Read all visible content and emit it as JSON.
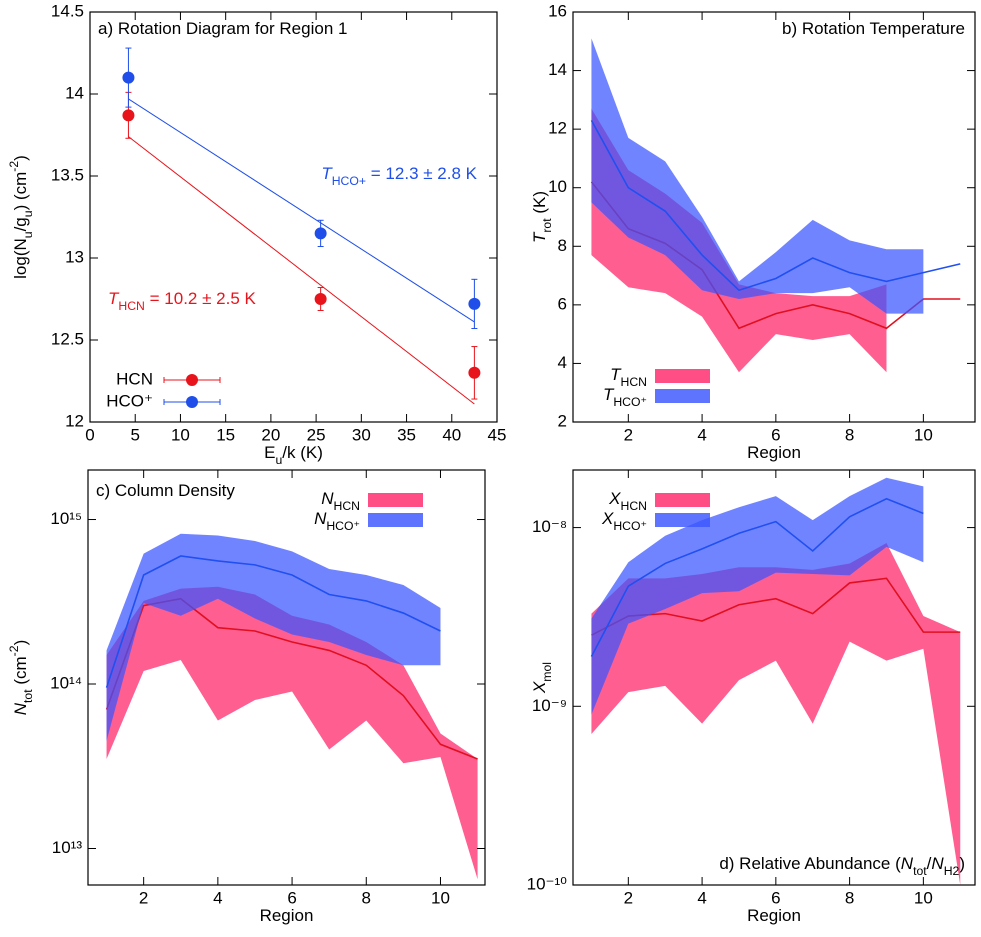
{
  "chart_data": [
    {
      "type": "scatter",
      "title": [
        {
          "text": "a) Rotation Diagram for Region 1"
        }
      ],
      "x_label": [
        {
          "text": "E"
        },
        {
          "text": "u",
          "shift": "sub"
        },
        {
          "text": "/k (K)"
        }
      ],
      "y_label": [
        {
          "text": "log(N"
        },
        {
          "text": "u",
          "shift": "sub"
        },
        {
          "text": "/g"
        },
        {
          "text": "u",
          "shift": "sub"
        },
        {
          "text": ") (cm"
        },
        {
          "text": "-2",
          "shift": "super"
        },
        {
          "text": ")"
        }
      ],
      "xlim": [
        0,
        45
      ],
      "xticks": [
        0,
        5,
        10,
        15,
        20,
        25,
        30,
        35,
        40,
        45
      ],
      "ylim": [
        12,
        14.5
      ],
      "yticks": [
        12,
        12.5,
        13,
        13.5,
        14,
        14.5
      ],
      "legend": "lower left",
      "series": [
        {
          "name": "HCN",
          "color": "#e8141b",
          "x": [
            4.25,
            25.5,
            42.5
          ],
          "values": [
            13.87,
            12.75,
            12.3
          ],
          "errors": [
            0.14,
            0.07,
            0.16
          ],
          "fit": {
            "x": [
              4.25,
              42.5
            ],
            "values": [
              13.74,
              12.11
            ]
          }
        },
        {
          "name": "HCO⁺",
          "color": "#1f4fe8",
          "x": [
            4.25,
            25.5,
            42.5
          ],
          "values": [
            14.1,
            13.15,
            12.72
          ],
          "errors": [
            0.18,
            0.08,
            0.15
          ],
          "fit": {
            "x": [
              4.25,
              42.5
            ],
            "values": [
              13.97,
              12.61
            ]
          }
        }
      ],
      "annotations": [
        {
          "text": [
            {
              "text": "T",
              "italic": true
            },
            {
              "text": "HCO+",
              "shift": "sub"
            },
            {
              "text": " = 12.3 ± 2.8 K"
            }
          ],
          "color": "#1f4fe8"
        },
        {
          "text": [
            {
              "text": "T",
              "italic": true
            },
            {
              "text": "HCN",
              "shift": "sub"
            },
            {
              "text": " = 10.2 ± 2.5 K"
            }
          ],
          "color": "#e8141b"
        }
      ]
    },
    {
      "type": "line",
      "title": [
        {
          "text": "b) Rotation Temperature"
        }
      ],
      "x_label": [
        {
          "text": "Region"
        }
      ],
      "y_label": [
        {
          "text": "T",
          "italic": true
        },
        {
          "text": "rot",
          "shift": "sub"
        },
        {
          "text": " (K)"
        }
      ],
      "xlim": [
        0.5,
        11.4
      ],
      "xticks": [
        2,
        4,
        6,
        8,
        10
      ],
      "ylim": [
        2,
        16
      ],
      "yticks": [
        2,
        4,
        6,
        8,
        10,
        12,
        14,
        16
      ],
      "legend": "lower left",
      "x": [
        1,
        2,
        3,
        4,
        5,
        6,
        7,
        8,
        9,
        10,
        11
      ],
      "series": [
        {
          "name": [
            {
              "text": "T",
              "italic": true
            },
            {
              "text": "HCN",
              "shift": "sub"
            }
          ],
          "color": "#e01020",
          "band_color": "#ff4d85",
          "band_opacity": 0.9,
          "values": [
            10.2,
            8.6,
            8.1,
            7.2,
            5.2,
            5.7,
            6.0,
            5.7,
            5.2,
            6.2,
            6.2
          ],
          "lower": [
            7.7,
            6.6,
            6.4,
            5.6,
            3.7,
            5.0,
            4.8,
            5.0,
            3.7,
            null,
            null
          ],
          "upper": [
            12.7,
            10.6,
            9.8,
            8.8,
            6.7,
            6.4,
            6.3,
            6.3,
            6.7,
            null,
            null
          ]
        },
        {
          "name": [
            {
              "text": "T",
              "italic": true
            },
            {
              "text": "HCO⁺",
              "shift": "sub"
            }
          ],
          "color": "#2050f0",
          "band_color": "#3a55ff",
          "band_opacity": 0.72,
          "values": [
            12.3,
            10.0,
            9.2,
            7.7,
            6.5,
            6.9,
            7.6,
            7.1,
            6.8,
            7.1,
            7.4
          ],
          "lower": [
            9.5,
            8.3,
            7.7,
            6.5,
            6.2,
            6.4,
            6.4,
            6.6,
            5.7,
            5.7,
            null
          ],
          "upper": [
            15.1,
            11.7,
            10.9,
            9.0,
            6.8,
            7.8,
            8.9,
            8.2,
            7.9,
            7.9,
            null
          ]
        }
      ]
    },
    {
      "type": "line",
      "title": [
        {
          "text": "c) Column Density"
        }
      ],
      "x_label": [
        {
          "text": "Region"
        }
      ],
      "y_label": [
        {
          "text": "N",
          "italic": true
        },
        {
          "text": "tot",
          "shift": "sub"
        },
        {
          "text": " (cm"
        },
        {
          "text": "-2",
          "shift": "super"
        },
        {
          "text": ")"
        }
      ],
      "xlim": [
        0.5,
        11.2
      ],
      "xticks": [
        2,
        4,
        6,
        8,
        10
      ],
      "yscale": "log",
      "ylim": [
        6000000000000.0,
        2000000000000000.0
      ],
      "yticks": [
        {
          "value": 10000000000000.0,
          "label": "10¹³"
        },
        {
          "value": 100000000000000.0,
          "label": "10¹⁴"
        },
        {
          "value": 1000000000000000.0,
          "label": "10¹⁵"
        }
      ],
      "legend": "upper right",
      "x": [
        1,
        2,
        3,
        4,
        5,
        6,
        7,
        8,
        9,
        10,
        11
      ],
      "series": [
        {
          "name": [
            {
              "text": "N",
              "italic": true
            },
            {
              "text": "HCN",
              "shift": "sub"
            }
          ],
          "color": "#e01020",
          "band_color": "#ff4d85",
          "band_opacity": 0.9,
          "values": [
            70000000000000.0,
            300000000000000.0,
            330000000000000.0,
            220000000000000.0,
            210000000000000.0,
            180000000000000.0,
            160000000000000.0,
            130000000000000.0,
            85000000000000.0,
            43000000000000.0,
            35000000000000.0
          ],
          "lower": [
            35000000000000.0,
            120000000000000.0,
            140000000000000.0,
            60000000000000.0,
            80000000000000.0,
            90000000000000.0,
            40000000000000.0,
            60000000000000.0,
            33000000000000.0,
            36000000000000.0,
            6500000000000.0
          ],
          "upper": [
            150000000000000.0,
            320000000000000.0,
            380000000000000.0,
            390000000000000.0,
            350000000000000.0,
            260000000000000.0,
            230000000000000.0,
            180000000000000.0,
            130000000000000.0,
            50000000000000.0,
            35000000000000.0
          ]
        },
        {
          "name": [
            {
              "text": "N",
              "italic": true
            },
            {
              "text": "HCO⁺",
              "shift": "sub"
            }
          ],
          "color": "#2050f0",
          "band_color": "#3a55ff",
          "band_opacity": 0.72,
          "values": [
            95000000000000.0,
            460000000000000.0,
            600000000000000.0,
            560000000000000.0,
            530000000000000.0,
            460000000000000.0,
            350000000000000.0,
            320000000000000.0,
            270000000000000.0,
            210000000000000.0,
            null
          ],
          "lower": [
            45000000000000.0,
            310000000000000.0,
            260000000000000.0,
            330000000000000.0,
            250000000000000.0,
            200000000000000.0,
            180000000000000.0,
            150000000000000.0,
            130000000000000.0,
            130000000000000.0,
            null
          ],
          "upper": [
            160000000000000.0,
            620000000000000.0,
            820000000000000.0,
            800000000000000.0,
            740000000000000.0,
            640000000000000.0,
            500000000000000.0,
            460000000000000.0,
            400000000000000.0,
            290000000000000.0,
            null
          ]
        }
      ]
    },
    {
      "type": "line",
      "title": [
        {
          "text": "d) Relative Abundance ("
        },
        {
          "text": "N",
          "italic": true
        },
        {
          "text": "tot",
          "shift": "sub"
        },
        {
          "text": "/"
        },
        {
          "text": "N",
          "italic": true
        },
        {
          "text": "H2",
          "shift": "sub"
        },
        {
          "text": ")"
        }
      ],
      "x_label": [
        {
          "text": "Region"
        }
      ],
      "y_label": [
        {
          "text": "X",
          "italic": true
        },
        {
          "text": "mol",
          "shift": "sub"
        }
      ],
      "xlim": [
        0.5,
        11.4
      ],
      "xticks": [
        2,
        4,
        6,
        8,
        10
      ],
      "yscale": "log",
      "ylim": [
        1e-10,
        2.1e-08
      ],
      "yticks": [
        {
          "value": 1e-10,
          "label": "10⁻¹⁰"
        },
        {
          "value": 1e-09,
          "label": "10⁻⁹"
        },
        {
          "value": 1e-08,
          "label": "10⁻⁸"
        }
      ],
      "legend": "upper left",
      "x": [
        1,
        2,
        3,
        4,
        5,
        6,
        7,
        8,
        9,
        10,
        11
      ],
      "series": [
        {
          "name": [
            {
              "text": "X",
              "italic": true
            },
            {
              "text": "HCN",
              "shift": "sub"
            }
          ],
          "color": "#e01020",
          "band_color": "#ff4d85",
          "band_opacity": 0.9,
          "values": [
            2.5e-09,
            3.2e-09,
            3.3e-09,
            3e-09,
            3.7e-09,
            4e-09,
            3.3e-09,
            4.9e-09,
            5.2e-09,
            2.6e-09,
            2.6e-09
          ],
          "lower": [
            7e-10,
            1.2e-09,
            1.3e-09,
            8e-10,
            1.4e-09,
            1.8e-09,
            8e-10,
            2.3e-09,
            1.8e-09,
            2.1e-09,
            1e-10
          ],
          "upper": [
            3.3e-09,
            5.2e-09,
            5.2e-09,
            5.5e-09,
            6e-09,
            6e-09,
            5.8e-09,
            6.3e-09,
            8.2e-09,
            3.2e-09,
            2.6e-09
          ]
        },
        {
          "name": [
            {
              "text": "X",
              "italic": true
            },
            {
              "text": "HCO⁺",
              "shift": "sub"
            }
          ],
          "color": "#2050f0",
          "band_color": "#3a55ff",
          "band_opacity": 0.72,
          "values": [
            1.9e-09,
            4.7e-09,
            6.3e-09,
            7.6e-09,
            9.3e-09,
            1.08e-08,
            7.4e-09,
            1.15e-08,
            1.45e-08,
            1.2e-08,
            null
          ],
          "lower": [
            9e-10,
            2.9e-09,
            3.5e-09,
            4.3e-09,
            4.4e-09,
            5.6e-09,
            5.5e-09,
            5.4e-09,
            7.8e-09,
            6.4e-09,
            null
          ],
          "upper": [
            3.1e-09,
            6.4e-09,
            9e-09,
            1.1e-08,
            1.3e-08,
            1.5e-08,
            1.1e-08,
            1.5e-08,
            1.9e-08,
            1.7e-08,
            null
          ]
        }
      ]
    }
  ]
}
